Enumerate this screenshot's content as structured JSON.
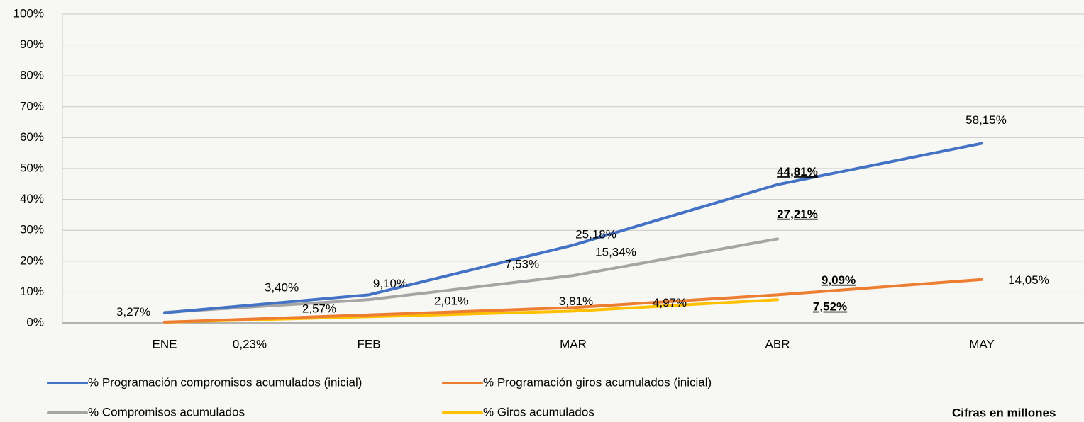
{
  "chart_data": {
    "type": "line",
    "categories": [
      "ENE",
      "FEB",
      "MAR",
      "ABR",
      "MAY"
    ],
    "series": [
      {
        "name": "% Programación compromisos acumulados (inicial)",
        "color": "#4472c4",
        "values": [
          3.27,
          9.1,
          25.18,
          44.81,
          58.15
        ],
        "value_labels": [
          "3,27%",
          "9,10%",
          "25,18%",
          "44,81%",
          "58,15%"
        ]
      },
      {
        "name": "% Programación giros acumulados (inicial)",
        "color": "#ed7d31",
        "values": [
          0.23,
          2.57,
          4.97,
          9.09,
          14.05
        ],
        "value_labels": [
          "0,23%",
          "2,57%",
          "4,97%",
          "9,09%",
          "14,05%"
        ]
      },
      {
        "name": "% Compromisos acumulados",
        "color": "#a5a5a5",
        "values": [
          3.4,
          7.53,
          15.34,
          27.21,
          null
        ],
        "value_labels": [
          "3,40%",
          "7,53%",
          "15,34%",
          "27,21%",
          null
        ]
      },
      {
        "name": "% Giros acumulados",
        "color": "#ffc000",
        "values": [
          0.23,
          2.01,
          3.81,
          7.52,
          null
        ],
        "value_labels": [
          null,
          "2,01%",
          "3,81%",
          "7,52%",
          null
        ]
      }
    ],
    "ylim": [
      0,
      100
    ],
    "yticks": [
      {
        "value": 0,
        "label": "0%"
      },
      {
        "value": 10,
        "label": "10%"
      },
      {
        "value": 20,
        "label": "20%"
      },
      {
        "value": 30,
        "label": "30%"
      },
      {
        "value": 40,
        "label": "40%"
      },
      {
        "value": 50,
        "label": "50%"
      },
      {
        "value": 60,
        "label": "60%"
      },
      {
        "value": 70,
        "label": "70%"
      },
      {
        "value": 80,
        "label": "80%"
      },
      {
        "value": 90,
        "label": "90%"
      },
      {
        "value": 100,
        "label": "100%"
      }
    ],
    "grid": true,
    "legend": "bottom",
    "note": "Cifras en millones"
  }
}
